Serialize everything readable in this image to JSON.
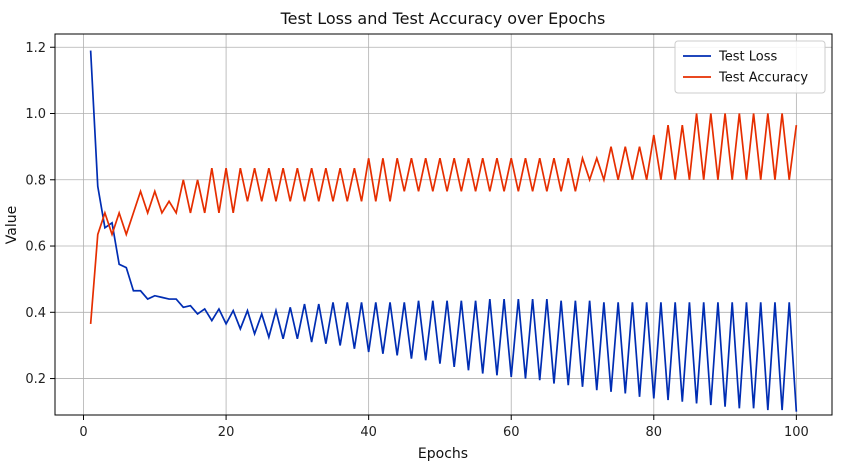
{
  "chart_data": {
    "type": "line",
    "title": "Test Loss and Test Accuracy over Epochs",
    "xlabel": "Epochs",
    "ylabel": "Value",
    "xlim": [
      -4,
      105
    ],
    "ylim": [
      0.09,
      1.24
    ],
    "xticks": [
      0,
      20,
      40,
      60,
      80,
      100
    ],
    "yticks": [
      0.2,
      0.4,
      0.6,
      0.8,
      1.0,
      1.2
    ],
    "grid": true,
    "legend_position": "top-right",
    "series": [
      {
        "name": "Test Loss",
        "color": "#002db3",
        "x": [
          1,
          2,
          3,
          4,
          5,
          6,
          7,
          8,
          9,
          10,
          11,
          12,
          13,
          14,
          15,
          16,
          17,
          18,
          19,
          20,
          21,
          22,
          23,
          24,
          25,
          26,
          27,
          28,
          29,
          30,
          31,
          32,
          33,
          34,
          35,
          36,
          37,
          38,
          39,
          40,
          41,
          42,
          43,
          44,
          45,
          46,
          47,
          48,
          49,
          50,
          51,
          52,
          53,
          54,
          55,
          56,
          57,
          58,
          59,
          60,
          61,
          62,
          63,
          64,
          65,
          66,
          67,
          68,
          69,
          70,
          71,
          72,
          73,
          74,
          75,
          76,
          77,
          78,
          79,
          80,
          81,
          82,
          83,
          84,
          85,
          86,
          87,
          88,
          89,
          90,
          91,
          92,
          93,
          94,
          95,
          96,
          97,
          98,
          99,
          100
        ],
        "values": [
          1.19,
          0.78,
          0.655,
          0.67,
          0.545,
          0.535,
          0.465,
          0.465,
          0.44,
          0.45,
          0.445,
          0.44,
          0.44,
          0.415,
          0.42,
          0.395,
          0.41,
          0.375,
          0.41,
          0.365,
          0.405,
          0.35,
          0.405,
          0.335,
          0.395,
          0.325,
          0.405,
          0.32,
          0.415,
          0.32,
          0.425,
          0.31,
          0.425,
          0.305,
          0.43,
          0.3,
          0.43,
          0.29,
          0.43,
          0.28,
          0.43,
          0.275,
          0.43,
          0.27,
          0.43,
          0.26,
          0.435,
          0.255,
          0.435,
          0.245,
          0.435,
          0.235,
          0.435,
          0.225,
          0.435,
          0.215,
          0.44,
          0.21,
          0.44,
          0.205,
          0.44,
          0.2,
          0.44,
          0.195,
          0.44,
          0.185,
          0.435,
          0.18,
          0.435,
          0.175,
          0.435,
          0.165,
          0.43,
          0.16,
          0.43,
          0.155,
          0.43,
          0.145,
          0.43,
          0.14,
          0.43,
          0.135,
          0.43,
          0.13,
          0.43,
          0.125,
          0.43,
          0.12,
          0.43,
          0.115,
          0.43,
          0.11,
          0.43,
          0.11,
          0.43,
          0.105,
          0.43,
          0.105,
          0.43,
          0.1
        ]
      },
      {
        "name": "Test Accuracy",
        "color": "#e62e00",
        "x": [
          1,
          2,
          3,
          4,
          5,
          6,
          7,
          8,
          9,
          10,
          11,
          12,
          13,
          14,
          15,
          16,
          17,
          18,
          19,
          20,
          21,
          22,
          23,
          24,
          25,
          26,
          27,
          28,
          29,
          30,
          31,
          32,
          33,
          34,
          35,
          36,
          37,
          38,
          39,
          40,
          41,
          42,
          43,
          44,
          45,
          46,
          47,
          48,
          49,
          50,
          51,
          52,
          53,
          54,
          55,
          56,
          57,
          58,
          59,
          60,
          61,
          62,
          63,
          64,
          65,
          66,
          67,
          68,
          69,
          70,
          71,
          72,
          73,
          74,
          75,
          76,
          77,
          78,
          79,
          80,
          81,
          82,
          83,
          84,
          85,
          86,
          87,
          88,
          89,
          90,
          91,
          92,
          93,
          94,
          95,
          96,
          97,
          98,
          99,
          100
        ],
        "values": [
          0.365,
          0.635,
          0.7,
          0.635,
          0.7,
          0.635,
          0.7,
          0.765,
          0.7,
          0.765,
          0.7,
          0.735,
          0.7,
          0.8,
          0.7,
          0.8,
          0.7,
          0.835,
          0.7,
          0.835,
          0.7,
          0.835,
          0.735,
          0.835,
          0.735,
          0.835,
          0.735,
          0.835,
          0.735,
          0.835,
          0.735,
          0.835,
          0.735,
          0.835,
          0.735,
          0.835,
          0.735,
          0.835,
          0.735,
          0.865,
          0.735,
          0.865,
          0.735,
          0.865,
          0.765,
          0.865,
          0.765,
          0.865,
          0.765,
          0.865,
          0.765,
          0.865,
          0.765,
          0.865,
          0.765,
          0.865,
          0.765,
          0.865,
          0.765,
          0.865,
          0.765,
          0.865,
          0.765,
          0.865,
          0.765,
          0.865,
          0.765,
          0.865,
          0.765,
          0.865,
          0.8,
          0.865,
          0.8,
          0.9,
          0.8,
          0.9,
          0.8,
          0.9,
          0.8,
          0.935,
          0.8,
          0.965,
          0.8,
          0.965,
          0.8,
          1.0,
          0.8,
          1.0,
          0.8,
          1.0,
          0.8,
          1.0,
          0.8,
          1.0,
          0.8,
          1.0,
          0.8,
          1.0,
          0.8,
          0.965
        ]
      }
    ]
  }
}
